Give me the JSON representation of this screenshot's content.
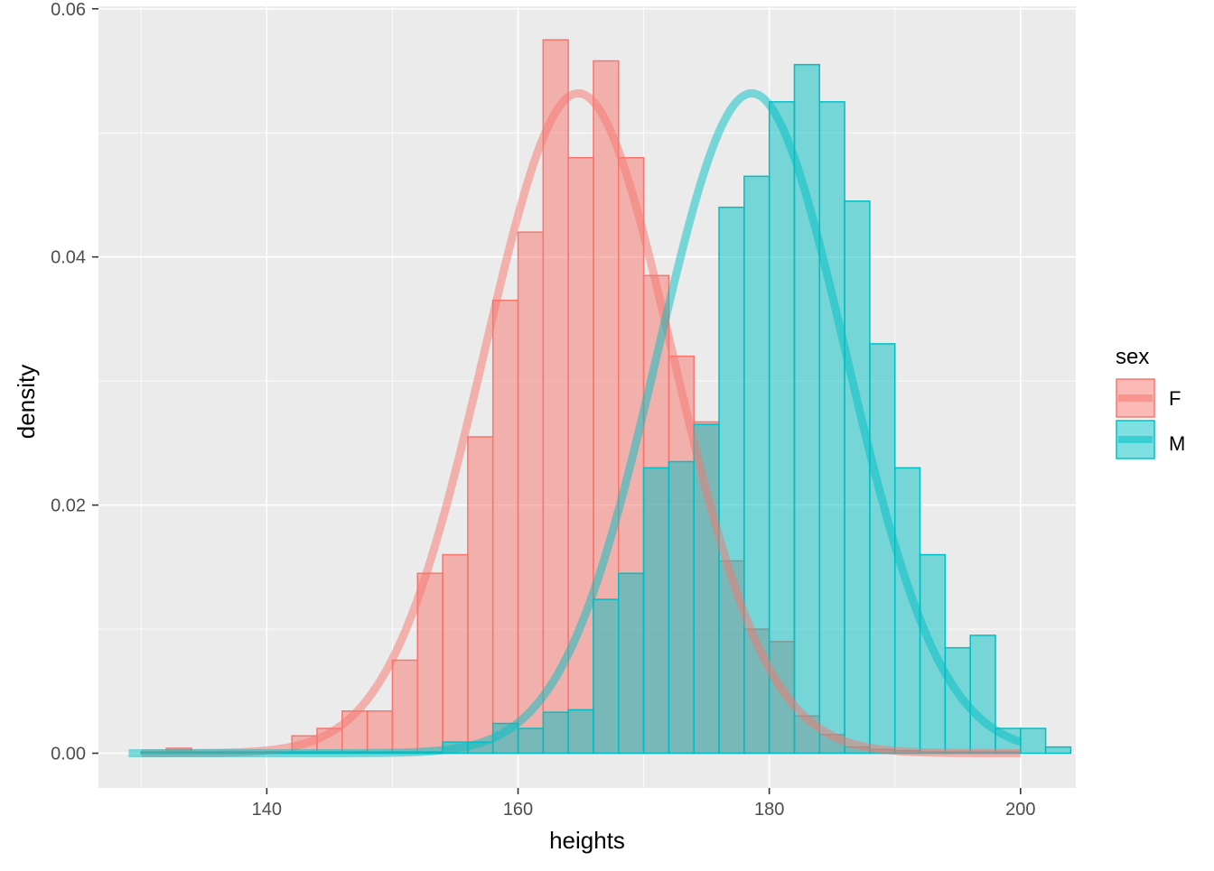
{
  "chart_data": {
    "type": "histogram",
    "xlabel": "heights",
    "ylabel": "density",
    "xlim": [
      126.6,
      204.4
    ],
    "ylim": [
      -0.0028,
      0.0602
    ],
    "x_ticks": [
      140,
      160,
      180,
      200
    ],
    "x_tick_labels": [
      "140",
      "160",
      "180",
      "200"
    ],
    "y_ticks": [
      0,
      0.02,
      0.04,
      0.06
    ],
    "y_tick_labels": [
      "0.00",
      "0.02",
      "0.04",
      "0.06"
    ],
    "grid": true,
    "legend": {
      "title": "sex",
      "placement": "right"
    },
    "bin_width": 2,
    "series": [
      {
        "name": "F",
        "color": "#F8766D",
        "bins": [
          {
            "x": 131,
            "y": 0.0001
          },
          {
            "x": 133,
            "y": 0.0004
          },
          {
            "x": 135,
            "y": 0.0001
          },
          {
            "x": 137,
            "y": 0.0001
          },
          {
            "x": 139,
            "y": 0.0001
          },
          {
            "x": 141,
            "y": 0.0001
          },
          {
            "x": 143,
            "y": 0.0014
          },
          {
            "x": 145,
            "y": 0.002
          },
          {
            "x": 147,
            "y": 0.0034
          },
          {
            "x": 149,
            "y": 0.0034
          },
          {
            "x": 151,
            "y": 0.0075
          },
          {
            "x": 153,
            "y": 0.0145
          },
          {
            "x": 155,
            "y": 0.016
          },
          {
            "x": 157,
            "y": 0.0255
          },
          {
            "x": 159,
            "y": 0.0365
          },
          {
            "x": 161,
            "y": 0.042
          },
          {
            "x": 163,
            "y": 0.0575
          },
          {
            "x": 165,
            "y": 0.048
          },
          {
            "x": 167,
            "y": 0.0558
          },
          {
            "x": 169,
            "y": 0.048
          },
          {
            "x": 171,
            "y": 0.0385
          },
          {
            "x": 173,
            "y": 0.032
          },
          {
            "x": 175,
            "y": 0.0267
          },
          {
            "x": 177,
            "y": 0.0155
          },
          {
            "x": 179,
            "y": 0.01
          },
          {
            "x": 181,
            "y": 0.009
          },
          {
            "x": 183,
            "y": 0.003
          },
          {
            "x": 185,
            "y": 0.0015
          },
          {
            "x": 187,
            "y": 0.0005
          },
          {
            "x": 189,
            "y": 0.0003
          },
          {
            "x": 191,
            "y": 0.0002
          },
          {
            "x": 193,
            "y": 0.0001
          },
          {
            "x": 195,
            "y": 0.0001
          },
          {
            "x": 197,
            "y": 0.0001
          },
          {
            "x": 199,
            "y": 0.0001
          }
        ],
        "density_curve": {
          "mean": 164.8,
          "sd": 7.5,
          "from": 130,
          "to": 200
        }
      },
      {
        "name": "M",
        "color": "#00BFC4",
        "bins": [
          {
            "x": 131,
            "y": 0.0001
          },
          {
            "x": 133,
            "y": 0.0001
          },
          {
            "x": 135,
            "y": 0.0001
          },
          {
            "x": 137,
            "y": 0.0001
          },
          {
            "x": 139,
            "y": 0.0001
          },
          {
            "x": 141,
            "y": 0.0001
          },
          {
            "x": 143,
            "y": 0.0001
          },
          {
            "x": 145,
            "y": 0.0001
          },
          {
            "x": 147,
            "y": 0.0001
          },
          {
            "x": 149,
            "y": 0.0001
          },
          {
            "x": 151,
            "y": 0.0001
          },
          {
            "x": 153,
            "y": 0.0001
          },
          {
            "x": 155,
            "y": 0.0009
          },
          {
            "x": 157,
            "y": 0.0009
          },
          {
            "x": 159,
            "y": 0.0024
          },
          {
            "x": 161,
            "y": 0.002
          },
          {
            "x": 163,
            "y": 0.0033
          },
          {
            "x": 165,
            "y": 0.0035
          },
          {
            "x": 167,
            "y": 0.0124
          },
          {
            "x": 169,
            "y": 0.0145
          },
          {
            "x": 171,
            "y": 0.023
          },
          {
            "x": 173,
            "y": 0.0235
          },
          {
            "x": 175,
            "y": 0.0265
          },
          {
            "x": 177,
            "y": 0.044
          },
          {
            "x": 179,
            "y": 0.0465
          },
          {
            "x": 181,
            "y": 0.0525
          },
          {
            "x": 183,
            "y": 0.0555
          },
          {
            "x": 185,
            "y": 0.0525
          },
          {
            "x": 187,
            "y": 0.0445
          },
          {
            "x": 189,
            "y": 0.033
          },
          {
            "x": 191,
            "y": 0.023
          },
          {
            "x": 193,
            "y": 0.016
          },
          {
            "x": 195,
            "y": 0.0085
          },
          {
            "x": 197,
            "y": 0.0095
          },
          {
            "x": 199,
            "y": 0.002
          },
          {
            "x": 201,
            "y": 0.002
          },
          {
            "x": 203,
            "y": 0.0005
          }
        ],
        "density_curve": {
          "mean": 178.6,
          "sd": 7.5,
          "from": 129,
          "to": 200
        }
      }
    ]
  }
}
